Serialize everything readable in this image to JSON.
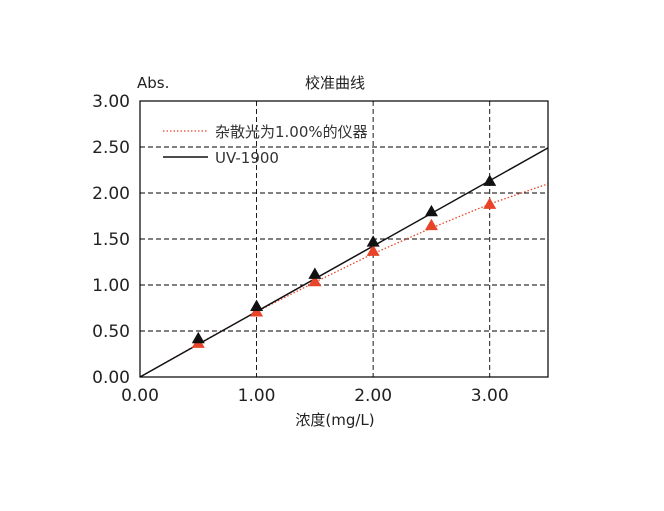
{
  "chart_data": {
    "type": "scatter",
    "title": "校准曲线",
    "ylabel": "Abs.",
    "xlabel": "浓度(mg/L)",
    "xlim": [
      0,
      3.5
    ],
    "ylim": [
      0,
      3.0
    ],
    "x_ticks": [
      0,
      1,
      2,
      3
    ],
    "x_tick_labels": [
      "0.00",
      "1.00",
      "2.00",
      "3.00"
    ],
    "y_ticks": [
      0,
      0.5,
      1.0,
      1.5,
      2.0,
      2.5,
      3.0
    ],
    "y_tick_labels": [
      "0.00",
      "0.50",
      "1.00",
      "1.50",
      "2.00",
      "2.50",
      "3.00"
    ],
    "grid": true,
    "legend": "top-left",
    "series": [
      {
        "name": "杂散光为1.00%的仪器",
        "color": "#e8442a",
        "marker": "triangle",
        "line_style": "dotted",
        "x": [
          0.5,
          1.0,
          1.5,
          2.0,
          2.5,
          3.0
        ],
        "y": [
          0.37,
          0.71,
          1.04,
          1.37,
          1.65,
          1.88
        ],
        "fit": [
          [
            0,
            0
          ],
          [
            0.5,
            0.36
          ],
          [
            1.0,
            0.71
          ],
          [
            1.5,
            1.03
          ],
          [
            2.0,
            1.34
          ],
          [
            2.5,
            1.62
          ],
          [
            3.0,
            1.88
          ],
          [
            3.5,
            2.1
          ]
        ]
      },
      {
        "name": "UV-1900",
        "color": "#111111",
        "marker": "triangle",
        "line_style": "solid",
        "x": [
          0.5,
          1.0,
          1.5,
          2.0,
          2.5,
          3.0
        ],
        "y": [
          0.42,
          0.77,
          1.12,
          1.47,
          1.8,
          2.13
        ],
        "fit": [
          [
            0,
            0
          ],
          [
            3.5,
            2.49
          ]
        ]
      }
    ]
  }
}
